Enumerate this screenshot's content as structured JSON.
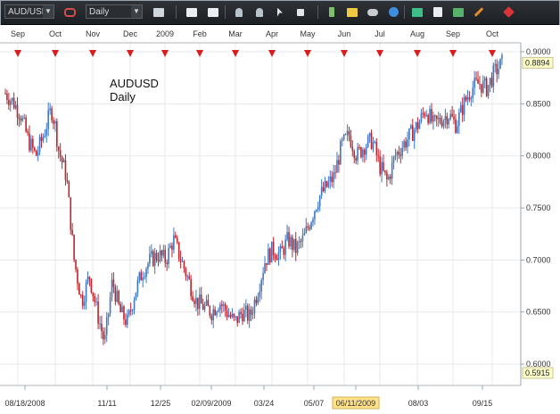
{
  "toolbar": {
    "symbol": "AUD/USD",
    "timeframe": "Daily",
    "icons": [
      "chart-type-icon",
      "zoom-icon",
      "properties-icon",
      "indicator-icon",
      "indicator-list-icon",
      "cursor-icon",
      "crosshair-icon",
      "hline-icon",
      "note-icon",
      "eye-icon",
      "globe-icon",
      "trendline-icon",
      "panel-icon",
      "save-icon",
      "pencil-icon",
      "close-icon"
    ]
  },
  "colors": {
    "up": "#3e78c4",
    "down": "#c0242c",
    "grid": "#e5e9ed",
    "marker": "#d81e1e",
    "price_tag": "#ffffcc",
    "date_highlight": "#ffe18a"
  },
  "chart_data": {
    "type": "candlestick",
    "title": "AUDUSD",
    "subtitle": "Daily",
    "ylim": [
      0.5915,
      0.9
    ],
    "y_ticks": [
      0.6,
      0.65,
      0.7,
      0.75,
      0.8,
      0.85,
      0.9
    ],
    "y_tick_labels": [
      "0.6000",
      "0.6500",
      "0.7000",
      "0.7500",
      "0.8000",
      "0.8500",
      "0.9000"
    ],
    "last_price_label": "0.8894",
    "min_price_label": "0.5915",
    "month_labels": [
      "Sep",
      "Oct",
      "Nov",
      "Dec",
      "2009",
      "Feb",
      "Mar",
      "Apr",
      "May",
      "Jun",
      "Jul",
      "Aug",
      "Sep",
      "Oct"
    ],
    "date_labels": [
      "08/18/2008",
      "11/11",
      "12/25",
      "02/09/2009",
      "03/24",
      "05/07",
      "06/11/2009",
      "08/03",
      "09/15"
    ],
    "highlighted_date": "06/11/2009",
    "close_path": [
      [
        0.0,
        0.86
      ],
      [
        0.02,
        0.852
      ],
      [
        0.04,
        0.84
      ],
      [
        0.06,
        0.815
      ],
      [
        0.08,
        0.8
      ],
      [
        0.1,
        0.82
      ],
      [
        0.12,
        0.845
      ],
      [
        0.13,
        0.83
      ],
      [
        0.14,
        0.805
      ],
      [
        0.16,
        0.78
      ],
      [
        0.18,
        0.7
      ],
      [
        0.2,
        0.66
      ],
      [
        0.22,
        0.685
      ],
      [
        0.24,
        0.65
      ],
      [
        0.26,
        0.62
      ],
      [
        0.28,
        0.68
      ],
      [
        0.3,
        0.65
      ],
      [
        0.32,
        0.64
      ],
      [
        0.34,
        0.67
      ],
      [
        0.36,
        0.69
      ],
      [
        0.38,
        0.7
      ],
      [
        0.4,
        0.705
      ],
      [
        0.42,
        0.7
      ],
      [
        0.44,
        0.72
      ],
      [
        0.46,
        0.7
      ],
      [
        0.48,
        0.68
      ],
      [
        0.5,
        0.66
      ],
      [
        0.52,
        0.655
      ],
      [
        0.54,
        0.65
      ],
      [
        0.56,
        0.66
      ],
      [
        0.58,
        0.65
      ],
      [
        0.6,
        0.64
      ],
      [
        0.62,
        0.65
      ],
      [
        0.64,
        0.645
      ],
      [
        0.66,
        0.67
      ],
      [
        0.68,
        0.7
      ],
      [
        0.7,
        0.71
      ],
      [
        0.72,
        0.705
      ],
      [
        0.74,
        0.72
      ],
      [
        0.76,
        0.71
      ],
      [
        0.78,
        0.72
      ],
      [
        0.8,
        0.74
      ],
      [
        0.82,
        0.76
      ],
      [
        0.84,
        0.77
      ],
      [
        0.86,
        0.78
      ],
      [
        0.88,
        0.81
      ],
      [
        0.9,
        0.82
      ],
      [
        0.92,
        0.8
      ],
      [
        0.94,
        0.81
      ],
      [
        0.96,
        0.815
      ],
      [
        0.98,
        0.79
      ],
      [
        1.0,
        0.775
      ],
      [
        1.02,
        0.8
      ],
      [
        1.04,
        0.81
      ],
      [
        1.06,
        0.82
      ],
      [
        1.08,
        0.83
      ],
      [
        1.1,
        0.845
      ],
      [
        1.12,
        0.83
      ],
      [
        1.14,
        0.835
      ],
      [
        1.16,
        0.84
      ],
      [
        1.18,
        0.83
      ],
      [
        1.2,
        0.85
      ],
      [
        1.22,
        0.865
      ],
      [
        1.24,
        0.87
      ],
      [
        1.26,
        0.865
      ],
      [
        1.28,
        0.88
      ],
      [
        1.3,
        0.889
      ]
    ]
  }
}
